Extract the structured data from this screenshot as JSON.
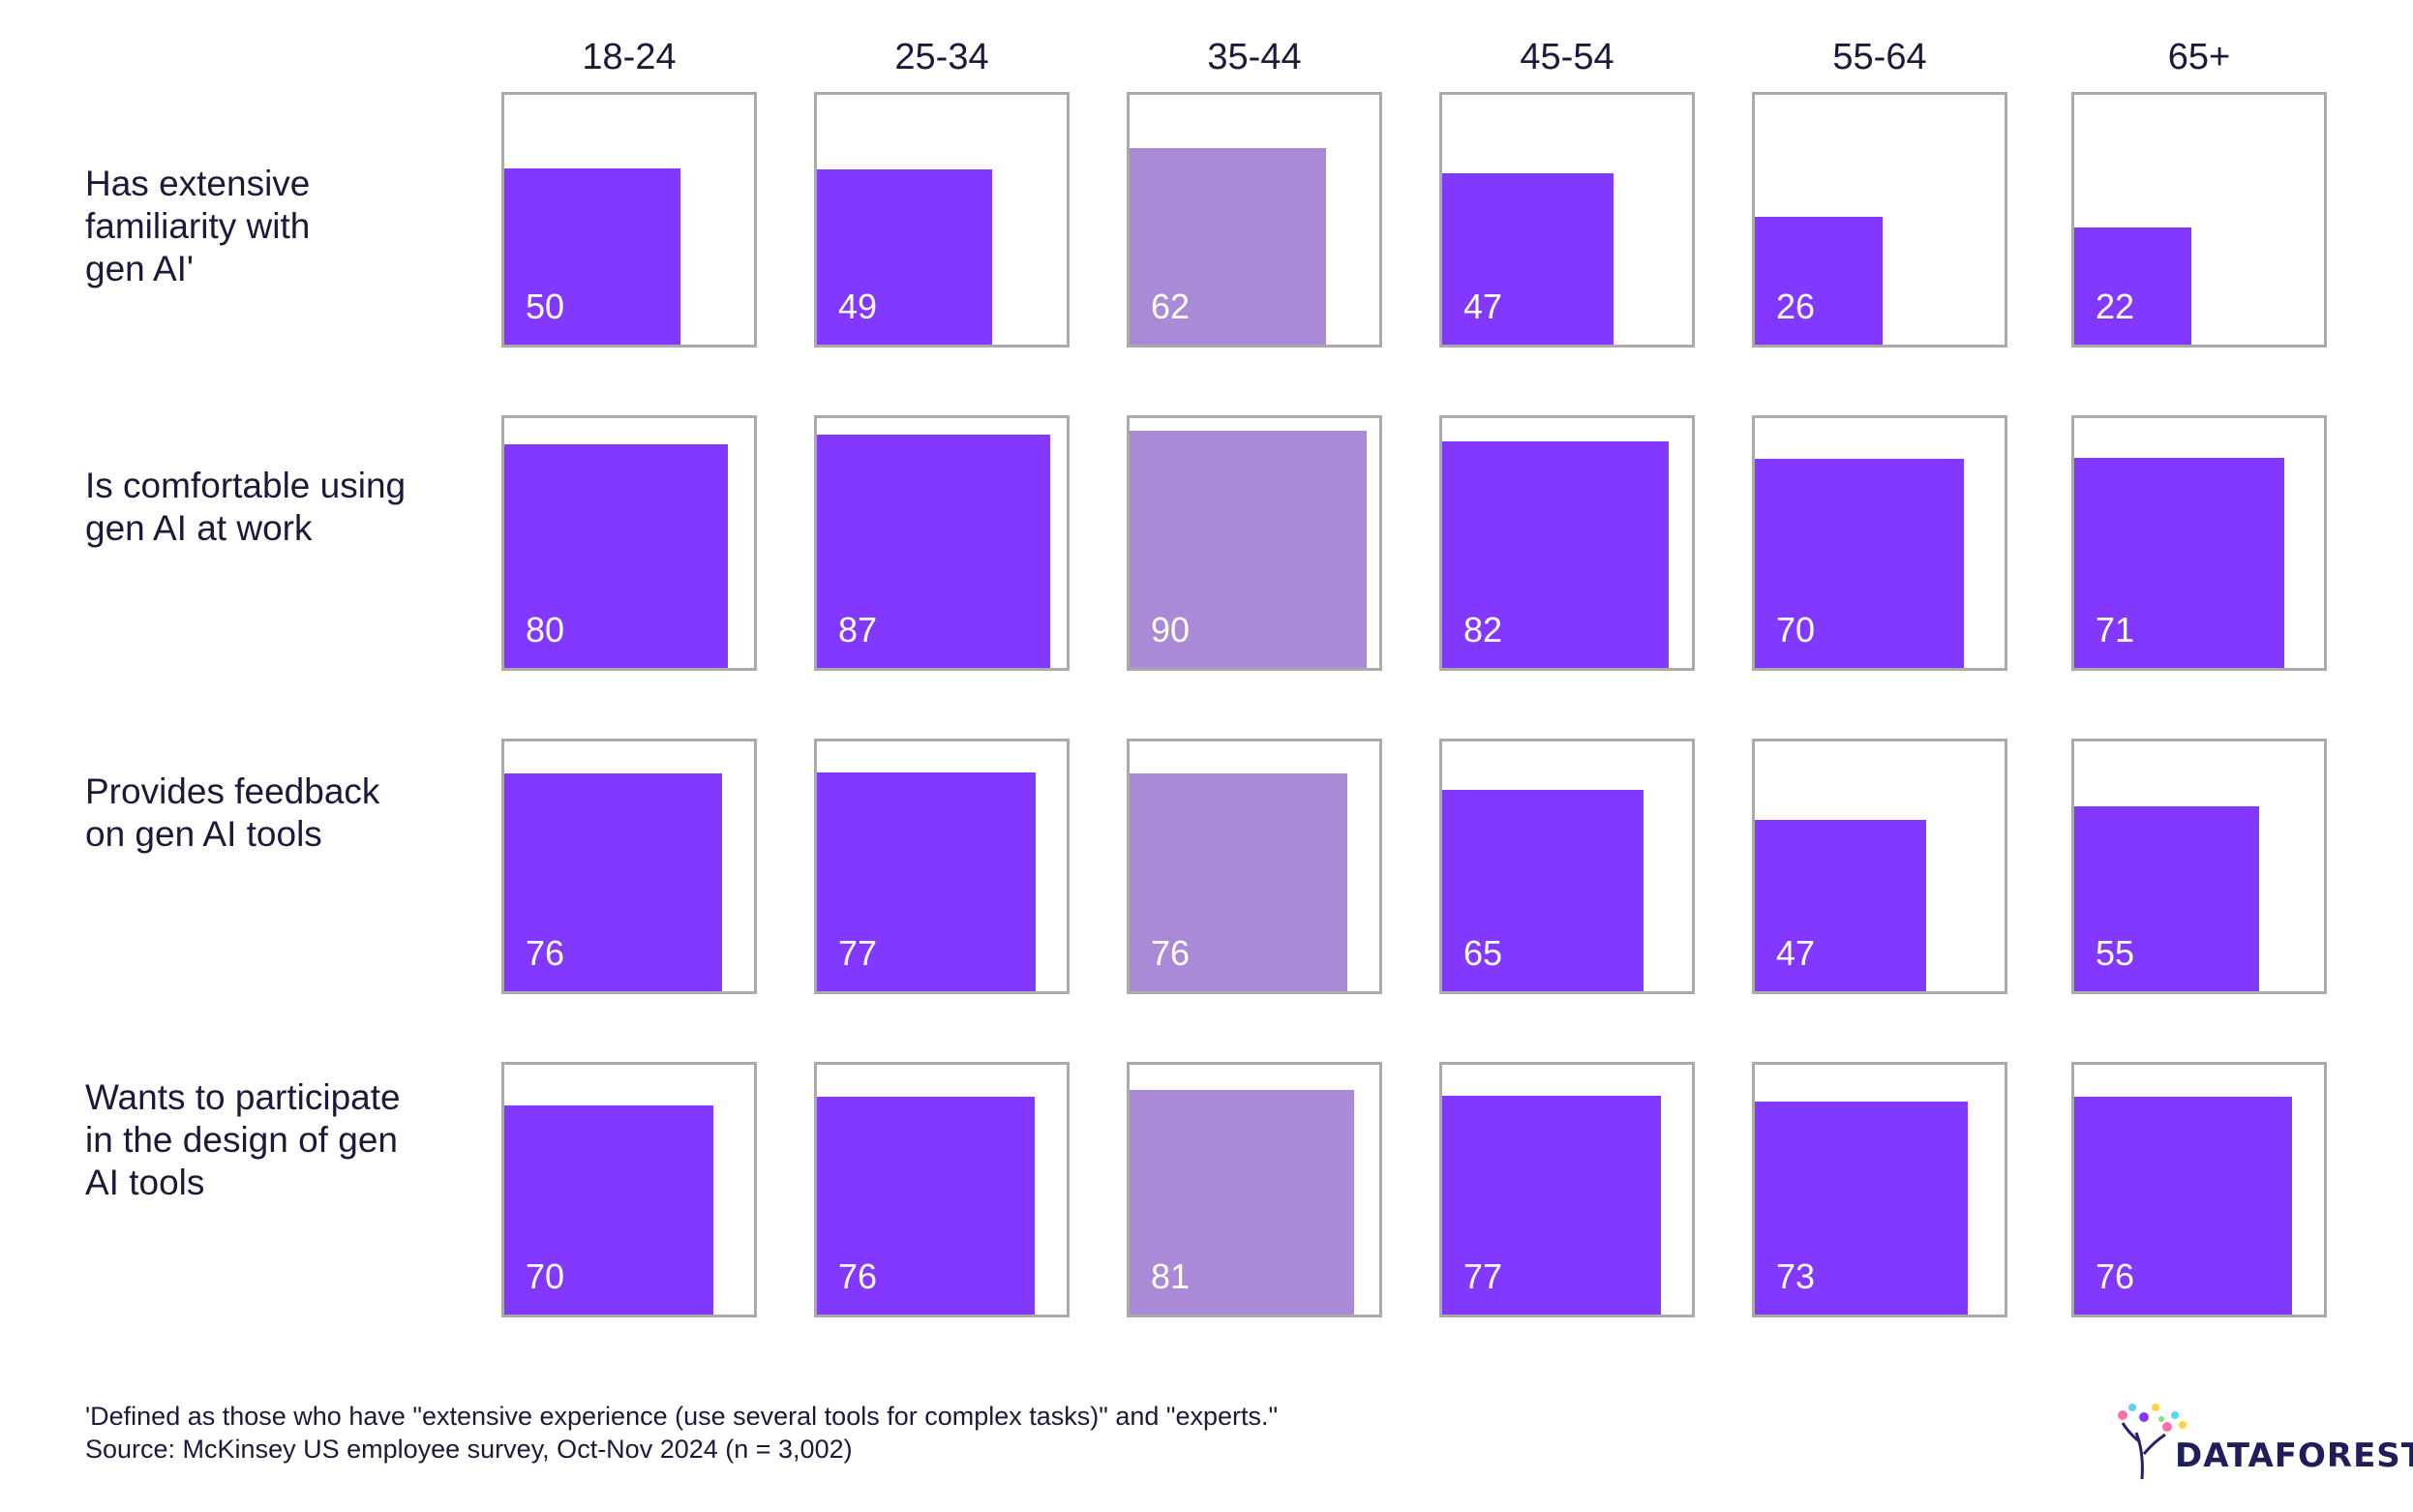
{
  "colors": {
    "bar": "#8338ff",
    "highlight_bar": "#aa8ad6",
    "cell_border": "#aaaaaa",
    "text": "#1a1a3a"
  },
  "chart_data": {
    "type": "bar",
    "categories": [
      "18-24",
      "25-34",
      "35-44",
      "45-54",
      "55-64",
      "65+"
    ],
    "highlighted_category": "35-44",
    "ylim": [
      0,
      100
    ],
    "series": [
      {
        "name": "Has extensive familiarity with gen AI'",
        "values": [
          50,
          49,
          62,
          47,
          26,
          22
        ]
      },
      {
        "name": "Is comfortable using gen AI at work",
        "values": [
          80,
          87,
          90,
          82,
          70,
          71
        ]
      },
      {
        "name": "Provides feedback on gen AI tools",
        "values": [
          76,
          77,
          76,
          65,
          47,
          55
        ]
      },
      {
        "name": "Wants to participate in the design of gen AI tools",
        "values": [
          70,
          76,
          81,
          77,
          73,
          76
        ]
      }
    ]
  },
  "row_labels": [
    [
      "Has extensive",
      "familiarity with",
      "gen AI'"
    ],
    [
      "Is comfortable using",
      "gen AI at work"
    ],
    [
      "Provides feedback",
      "on gen AI tools"
    ],
    [
      "Wants to participate",
      "in the design of gen",
      "AI tools"
    ]
  ],
  "footnotes": {
    "definition": "'Defined as those who have \"extensive experience (use several tools for complex tasks)\" and \"experts.\"",
    "source": "Source: McKinsey US employee survey, Oct-Nov 2024 (n = 3,002)"
  },
  "logo": {
    "text": "DATAFOREST"
  }
}
